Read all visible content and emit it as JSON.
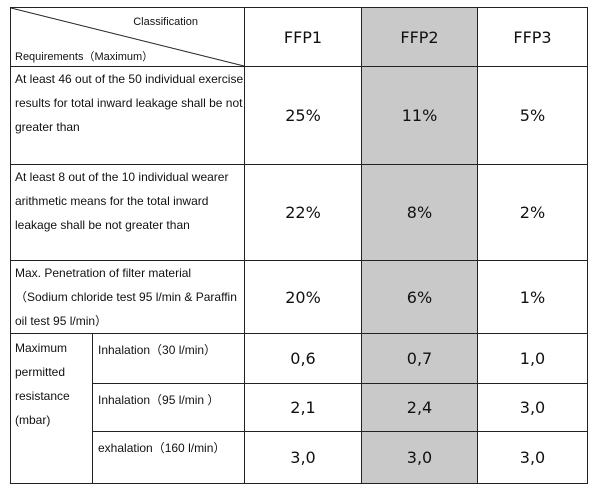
{
  "header": {
    "classification": "Classification",
    "requirements": "Requirements（Maximum）",
    "cols": [
      "FFP1",
      "FFP2",
      "FFP3"
    ]
  },
  "rows": [
    {
      "label": "At least 46 out of the 50 individual exercise results for total inward leakage shall be not greater than",
      "values": [
        "25%",
        "11%",
        "5%"
      ]
    },
    {
      "label": "At least 8 out of the 10 individual wearer arithmetic means for the total inward leakage shall be not greater than",
      "values": [
        "22%",
        "8%",
        "2%"
      ]
    },
    {
      "label": "Max. Penetration of filter material （Sodium chloride test 95 l/min & Paraffin oil test 95 l/min）",
      "values": [
        "20%",
        "6%",
        "1%"
      ]
    }
  ],
  "resistance": {
    "label": "Maximum permitted resistance (mbar)",
    "subrows": [
      {
        "label": "Inhalation（30 l/min）",
        "values": [
          "0,6",
          "0,7",
          "1,0"
        ]
      },
      {
        "label": "Inhalation（95 l/min ）",
        "values": [
          "2,1",
          "2,4",
          "3,0"
        ]
      },
      {
        "label": "exhalation（160 l/min）",
        "values": [
          "3,0",
          "3,0",
          "3,0"
        ]
      }
    ]
  }
}
